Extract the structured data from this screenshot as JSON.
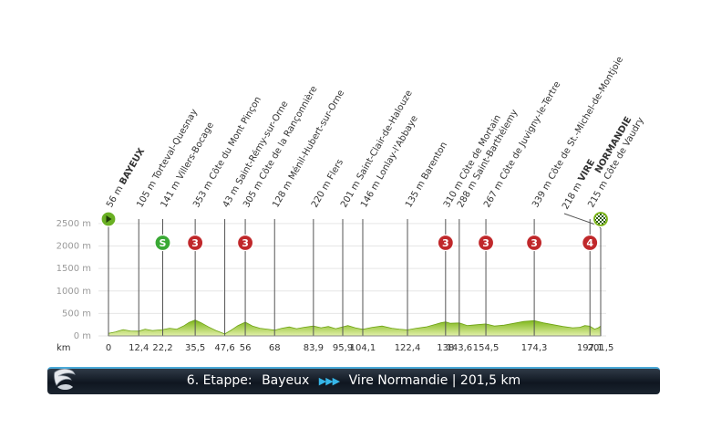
{
  "chart_data": {
    "type": "area",
    "x_unit": "km",
    "y_ticks": [
      "2500 m",
      "2000 m",
      "1500 m",
      "1000 m",
      "500 m",
      "0 m"
    ],
    "y_tick_values": [
      2500,
      2000,
      1500,
      1000,
      500,
      0
    ],
    "ylim": [
      0,
      2600
    ],
    "xlim": [
      0,
      201.5
    ],
    "km_marks": [
      {
        "km": 0,
        "label": "0"
      },
      {
        "km": 12.4,
        "label": "12,4"
      },
      {
        "km": 22.2,
        "label": "22,2"
      },
      {
        "km": 35.5,
        "label": "35,5"
      },
      {
        "km": 47.6,
        "label": "47,6"
      },
      {
        "km": 56,
        "label": "56"
      },
      {
        "km": 68,
        "label": "68"
      },
      {
        "km": 83.9,
        "label": "83,9"
      },
      {
        "km": 95.9,
        "label": "95,9"
      },
      {
        "km": 104.1,
        "label": "104,1"
      },
      {
        "km": 122.4,
        "label": "122,4"
      },
      {
        "km": 138,
        "label": "138"
      },
      {
        "km": 143.6,
        "label": "143,6"
      },
      {
        "km": 154.5,
        "label": "154,5"
      },
      {
        "km": 174.3,
        "label": "174,3"
      },
      {
        "km": 197.1,
        "label": "197,1"
      },
      {
        "km": 201.5,
        "label": "201,5"
      }
    ],
    "waypoints": [
      {
        "km": 0,
        "elev": 56,
        "elev_label": "56 m",
        "name": "BAYEUX",
        "bold": true,
        "marker": "start"
      },
      {
        "km": 12.4,
        "elev": 105,
        "elev_label": "105 m",
        "name": "Torteval-Quesnay"
      },
      {
        "km": 22.2,
        "elev": 141,
        "elev_label": "141 m",
        "name": "Villers-Bocage",
        "marker": "S"
      },
      {
        "km": 35.5,
        "elev": 353,
        "elev_label": "353 m",
        "name": "Côte du Mont Pinçon",
        "marker": "3"
      },
      {
        "km": 47.6,
        "elev": 43,
        "elev_label": "43 m",
        "name": "Saint-Rémy-sur-Orne"
      },
      {
        "km": 56,
        "elev": 305,
        "elev_label": "305 m",
        "name": "Côte de la Rançonnière",
        "marker": "3"
      },
      {
        "km": 68,
        "elev": 128,
        "elev_label": "128 m",
        "name": "Ménil-Hubert-sur-Orne"
      },
      {
        "km": 83.9,
        "elev": 220,
        "elev_label": "220 m",
        "name": "Flers"
      },
      {
        "km": 95.9,
        "elev": 201,
        "elev_label": "201 m",
        "name": "Saint-Clair-de-Halouze"
      },
      {
        "km": 104.1,
        "elev": 146,
        "elev_label": "146 m",
        "name": "Lonlay-l'Abbaye"
      },
      {
        "km": 122.4,
        "elev": 135,
        "elev_label": "135 m",
        "name": "Barenton"
      },
      {
        "km": 138,
        "elev": 310,
        "elev_label": "310 m",
        "name": "Côte de Mortain",
        "marker": "3"
      },
      {
        "km": 143.6,
        "elev": 288,
        "elev_label": "288 m",
        "name": "Saint-Barthélemy"
      },
      {
        "km": 154.5,
        "elev": 267,
        "elev_label": "267 m",
        "name": "Côte de Juvigny-le-Tertre",
        "marker": "3"
      },
      {
        "km": 174.3,
        "elev": 339,
        "elev_label": "339 m",
        "name": "Côte de St.-Michel-de-Montjoie",
        "marker": "3"
      },
      {
        "km": 197.1,
        "elev": 215,
        "elev_label": "215 m",
        "name": "Côte de Vaudry",
        "marker": "4"
      },
      {
        "km": 201.5,
        "elev": 218,
        "elev_label": "218 m",
        "name": "VIRE",
        "name2": "NORMANDIE",
        "bold": true,
        "marker": "finish"
      }
    ],
    "profile": [
      [
        0,
        56
      ],
      [
        3,
        90
      ],
      [
        6,
        140
      ],
      [
        9,
        110
      ],
      [
        12.4,
        105
      ],
      [
        15,
        150
      ],
      [
        18,
        120
      ],
      [
        22.2,
        141
      ],
      [
        25,
        170
      ],
      [
        28,
        150
      ],
      [
        31,
        230
      ],
      [
        33,
        300
      ],
      [
        35.5,
        353
      ],
      [
        38,
        290
      ],
      [
        41,
        200
      ],
      [
        44,
        120
      ],
      [
        47.6,
        43
      ],
      [
        50,
        120
      ],
      [
        53,
        230
      ],
      [
        56,
        305
      ],
      [
        59,
        220
      ],
      [
        62,
        170
      ],
      [
        65,
        150
      ],
      [
        68,
        128
      ],
      [
        71,
        170
      ],
      [
        74,
        200
      ],
      [
        77,
        160
      ],
      [
        80,
        190
      ],
      [
        83.9,
        220
      ],
      [
        87,
        180
      ],
      [
        90,
        210
      ],
      [
        93,
        160
      ],
      [
        95.9,
        201
      ],
      [
        98,
        230
      ],
      [
        101,
        180
      ],
      [
        104.1,
        146
      ],
      [
        108,
        190
      ],
      [
        112,
        220
      ],
      [
        116,
        170
      ],
      [
        119,
        150
      ],
      [
        122.4,
        135
      ],
      [
        126,
        170
      ],
      [
        130,
        200
      ],
      [
        134,
        260
      ],
      [
        136,
        290
      ],
      [
        138,
        310
      ],
      [
        140,
        280
      ],
      [
        143.6,
        288
      ],
      [
        147,
        230
      ],
      [
        151,
        250
      ],
      [
        154.5,
        267
      ],
      [
        158,
        220
      ],
      [
        162,
        240
      ],
      [
        166,
        280
      ],
      [
        170,
        320
      ],
      [
        174.3,
        339
      ],
      [
        178,
        290
      ],
      [
        182,
        250
      ],
      [
        186,
        210
      ],
      [
        190,
        180
      ],
      [
        193,
        190
      ],
      [
        195,
        230
      ],
      [
        197.1,
        215
      ],
      [
        199,
        150
      ],
      [
        200.5,
        180
      ],
      [
        201.5,
        218
      ]
    ]
  },
  "axis": {
    "km_label": "km"
  },
  "banner": {
    "stage": "6. Etappe:",
    "from": "Bayeux",
    "arrows": "▶▶▶",
    "to": "Vire Normandie | 201,5 km"
  },
  "colors": {
    "terrain_top": "#7cb518",
    "terrain_bottom": "#d9ec9a",
    "start_green": "#6ab023",
    "sprint_green": "#3aa935",
    "climb_red": "#c0282b",
    "banner_accent": "#4aa9d8"
  },
  "icons": {
    "logo": "swoosh-logo-icon",
    "start": "play-arrow-icon",
    "finish": "checkered-flag-icon"
  }
}
